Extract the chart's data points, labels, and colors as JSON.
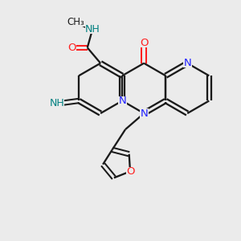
{
  "background_color": "#ebebeb",
  "bond_color": "#1a1a1a",
  "N_color": "#2020ff",
  "O_color": "#ff2020",
  "NH_color": "#008080",
  "figsize": [
    3.0,
    3.0
  ],
  "dpi": 100,
  "xlim": [
    0,
    10
  ],
  "ylim": [
    0,
    10
  ]
}
